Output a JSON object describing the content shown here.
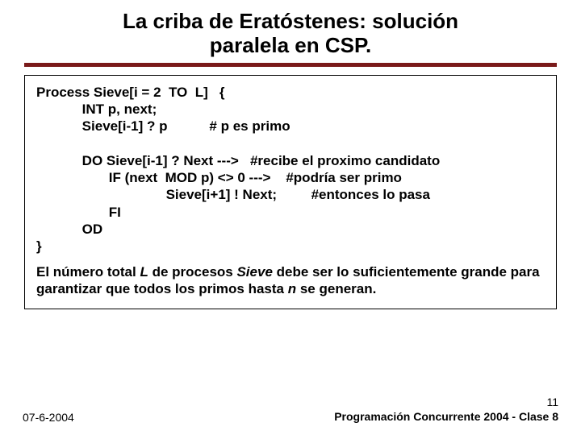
{
  "title_line1": "La criba de Eratóstenes: solución",
  "title_line2": "paralela en CSP.",
  "code": {
    "l1": "Process Sieve[i = 2  TO  L]   {",
    "l2": "            INT p, next;",
    "l3": "            Sieve[i-1] ? p           # p es primo",
    "blank1": " ",
    "l4": "            DO Sieve[i-1] ? Next --->   #recibe el proximo candidato",
    "l5": "                   IF (next  MOD p) <> 0 --->    #podría ser primo",
    "l6": "                                  Sieve[i+1] ! Next;         #entonces lo pasa",
    "l7": "                   FI",
    "l8": "            OD",
    "l9": "}"
  },
  "note_pre": "El número total ",
  "note_L": "L",
  "note_mid1": " de procesos ",
  "note_Sieve": "Sieve",
  "note_mid2": " debe ser lo suficientemente grande para garantizar que todos los primos hasta ",
  "note_n": "n",
  "note_end": " se generan.",
  "footer_date": "07-6-2004",
  "footer_page": "11",
  "footer_course": "Programación Concurrente 2004 - Clase 8",
  "colors": {
    "rule": "#7a1a1a",
    "background": "#ffffff",
    "text": "#000000",
    "border": "#000000"
  }
}
